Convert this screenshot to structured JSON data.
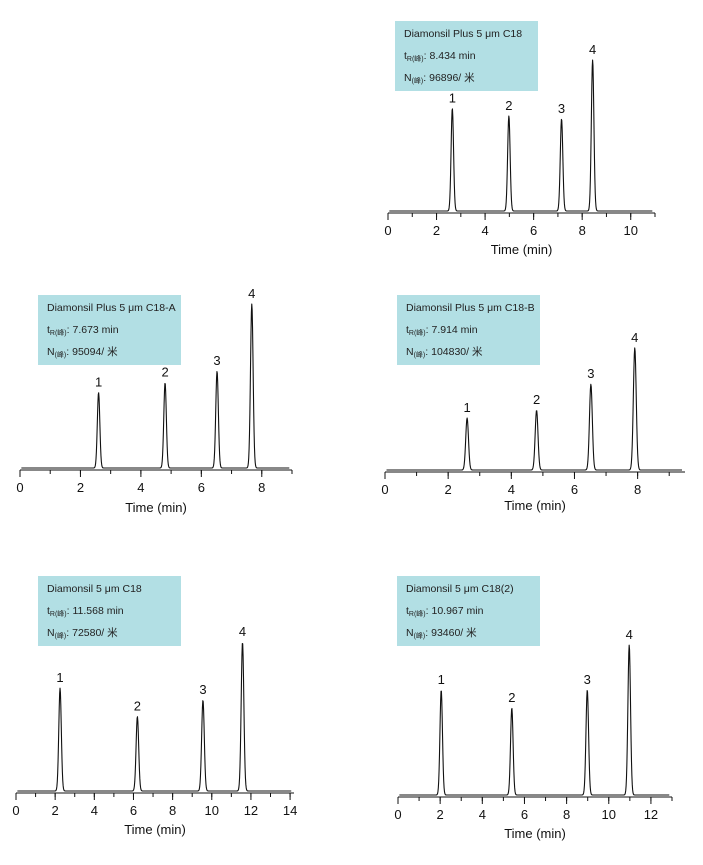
{
  "chart_data": [
    {
      "type": "line",
      "title": "Diamonsil Plus 5 μm C18",
      "info": {
        "t_label": "t",
        "t_sub": "R(峰)",
        "t_value": "8.434 min",
        "n_label": "N",
        "n_sub": "(峰)",
        "n_value": "96896/ 米"
      },
      "xlabel": "Time (min)",
      "xlim": [
        0,
        11
      ],
      "xticks": [
        "0",
        "2",
        "4",
        "6",
        "8",
        "10"
      ],
      "peaks": [
        {
          "label": "1",
          "time": 2.65,
          "height": 0.68
        },
        {
          "label": "2",
          "time": 4.98,
          "height": 0.63
        },
        {
          "label": "3",
          "time": 7.15,
          "height": 0.61
        },
        {
          "label": "4",
          "time": 8.43,
          "height": 1.0
        }
      ]
    },
    {
      "type": "line",
      "title": "Diamonsil Plus 5 μm C18-A",
      "info": {
        "t_label": "t",
        "t_sub": "R(峰)",
        "t_value": "7.673 min",
        "n_label": "N",
        "n_sub": "(峰)",
        "n_value": "95094/ 米"
      },
      "xlabel": "Time (min)",
      "xlim": [
        0,
        9
      ],
      "xticks": [
        "0",
        "2",
        "4",
        "6",
        "8"
      ],
      "peaks": [
        {
          "label": "1",
          "time": 2.6,
          "height": 0.46
        },
        {
          "label": "2",
          "time": 4.8,
          "height": 0.52
        },
        {
          "label": "3",
          "time": 6.52,
          "height": 0.59
        },
        {
          "label": "4",
          "time": 7.67,
          "height": 1.0
        }
      ]
    },
    {
      "type": "line",
      "title": "Diamonsil Plus 5 μm C18-B",
      "info": {
        "t_label": "t",
        "t_sub": "R(峰)",
        "t_value": "7.914 min",
        "n_label": "N",
        "n_sub": "(峰)",
        "n_value": "104830/ 米"
      },
      "xlabel": "Time (min)",
      "xlim": [
        0,
        9.5
      ],
      "xticks": [
        "0",
        "2",
        "4",
        "6",
        "8"
      ],
      "peaks": [
        {
          "label": "1",
          "time": 2.6,
          "height": 0.4
        },
        {
          "label": "2",
          "time": 4.8,
          "height": 0.46
        },
        {
          "label": "3",
          "time": 6.52,
          "height": 0.66
        },
        {
          "label": "4",
          "time": 7.91,
          "height": 0.94
        }
      ]
    },
    {
      "type": "line",
      "title": "Diamonsil 5 μm C18",
      "info": {
        "t_label": "t",
        "t_sub": "R(峰)",
        "t_value": "11.568 min",
        "n_label": "N",
        "n_sub": "(峰)",
        "n_value": "72580/ 米"
      },
      "xlabel": "Time (min)",
      "xlim": [
        0,
        14.2
      ],
      "xticks": [
        "0",
        "2",
        "4",
        "6",
        "8",
        "10",
        "12",
        "14"
      ],
      "peaks": [
        {
          "label": "1",
          "time": 2.25,
          "height": 0.69
        },
        {
          "label": "2",
          "time": 6.2,
          "height": 0.5
        },
        {
          "label": "3",
          "time": 9.55,
          "height": 0.61
        },
        {
          "label": "4",
          "time": 11.57,
          "height": 1.0
        }
      ]
    },
    {
      "type": "line",
      "title": "Diamonsil 5 μm C18(2)",
      "info": {
        "t_label": "t",
        "t_sub": "R(峰)",
        "t_value": "10.967 min",
        "n_label": "N",
        "n_sub": "(峰)",
        "n_value": "93460/ 米"
      },
      "xlabel": "Time (min)",
      "xlim": [
        0,
        13
      ],
      "xticks": [
        "0",
        "2",
        "4",
        "6",
        "8",
        "10",
        "12"
      ],
      "peaks": [
        {
          "label": "1",
          "time": 2.05,
          "height": 0.7
        },
        {
          "label": "2",
          "time": 5.4,
          "height": 0.58
        },
        {
          "label": "3",
          "time": 8.98,
          "height": 0.7
        },
        {
          "label": "4",
          "time": 10.97,
          "height": 1.0
        }
      ]
    }
  ]
}
